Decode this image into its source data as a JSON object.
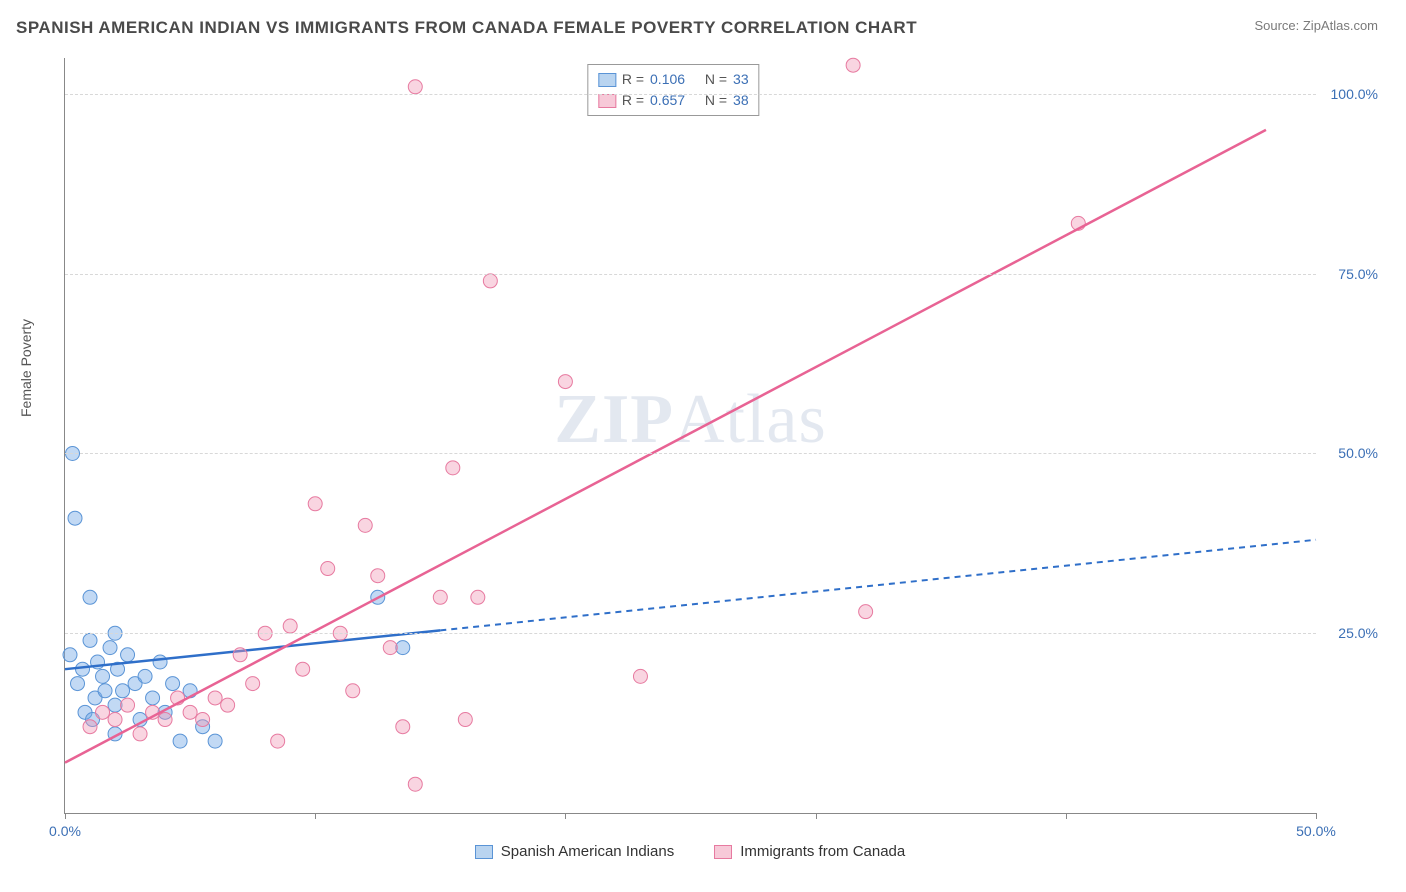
{
  "header": {
    "title": "SPANISH AMERICAN INDIAN VS IMMIGRANTS FROM CANADA FEMALE POVERTY CORRELATION CHART",
    "source": "Source: ZipAtlas.com"
  },
  "chart": {
    "type": "scatter",
    "ylabel": "Female Poverty",
    "watermark": "ZIPAtlas",
    "background_color": "#ffffff",
    "grid_color": "#d8d8d8",
    "axis_color": "#888888",
    "tick_label_color": "#3b6fb5",
    "xlim": [
      0,
      50
    ],
    "ylim": [
      0,
      105
    ],
    "xticks": [
      0,
      10,
      20,
      30,
      40,
      50
    ],
    "xtick_labels": [
      "0.0%",
      "",
      "",
      "",
      "",
      "50.0%"
    ],
    "yticks": [
      25,
      50,
      75,
      100
    ],
    "ytick_labels": [
      "25.0%",
      "50.0%",
      "75.0%",
      "100.0%"
    ],
    "series": [
      {
        "name": "Spanish American Indians",
        "color_fill": "rgba(120,170,230,0.45)",
        "color_stroke": "#5a94d6",
        "swatch_fill": "#b9d4f0",
        "swatch_border": "#5a94d6",
        "marker_r": 7,
        "R": "0.106",
        "N": "33",
        "trend": {
          "x1": 0,
          "y1": 20,
          "x2": 50,
          "y2": 38,
          "solid_until_x": 15,
          "stroke": "#2f6fc9",
          "width": 2.5,
          "dash": "6,5"
        },
        "points": [
          [
            0.2,
            22
          ],
          [
            0.5,
            18
          ],
          [
            0.7,
            20
          ],
          [
            0.8,
            14
          ],
          [
            1.0,
            24
          ],
          [
            1.2,
            16
          ],
          [
            1.3,
            21
          ],
          [
            1.5,
            19
          ],
          [
            1.6,
            17
          ],
          [
            1.8,
            23
          ],
          [
            2.0,
            15
          ],
          [
            2.1,
            20
          ],
          [
            2.3,
            17
          ],
          [
            2.5,
            22
          ],
          [
            2.8,
            18
          ],
          [
            3.0,
            13
          ],
          [
            3.2,
            19
          ],
          [
            3.5,
            16
          ],
          [
            3.8,
            21
          ],
          [
            4.0,
            14
          ],
          [
            4.3,
            18
          ],
          [
            4.6,
            10
          ],
          [
            5.0,
            17
          ],
          [
            5.5,
            12
          ],
          [
            6.0,
            10
          ],
          [
            0.4,
            41
          ],
          [
            0.3,
            50
          ],
          [
            1.0,
            30
          ],
          [
            2.0,
            25
          ],
          [
            2.0,
            11
          ],
          [
            12.5,
            30
          ],
          [
            13.5,
            23
          ],
          [
            1.1,
            13
          ]
        ]
      },
      {
        "name": "Immigrants from Canada",
        "color_fill": "rgba(240,150,180,0.40)",
        "color_stroke": "#e77aa0",
        "swatch_fill": "#f7c9d8",
        "swatch_border": "#e77aa0",
        "marker_r": 7,
        "R": "0.657",
        "N": "38",
        "trend": {
          "x1": 0,
          "y1": 7,
          "x2": 48,
          "y2": 95,
          "solid_until_x": 48,
          "stroke": "#e86394",
          "width": 2.5,
          "dash": ""
        },
        "points": [
          [
            1.0,
            12
          ],
          [
            1.5,
            14
          ],
          [
            2.0,
            13
          ],
          [
            2.5,
            15
          ],
          [
            3.0,
            11
          ],
          [
            3.5,
            14
          ],
          [
            4.0,
            13
          ],
          [
            4.5,
            16
          ],
          [
            5.0,
            14
          ],
          [
            5.5,
            13
          ],
          [
            6.0,
            16
          ],
          [
            6.5,
            15
          ],
          [
            7.0,
            22
          ],
          [
            7.5,
            18
          ],
          [
            8.0,
            25
          ],
          [
            8.5,
            10
          ],
          [
            9.0,
            26
          ],
          [
            9.5,
            20
          ],
          [
            10.0,
            43
          ],
          [
            10.5,
            34
          ],
          [
            11.0,
            25
          ],
          [
            11.5,
            17
          ],
          [
            12.0,
            40
          ],
          [
            12.5,
            33
          ],
          [
            13.0,
            23
          ],
          [
            13.5,
            12
          ],
          [
            14.0,
            4
          ],
          [
            15.0,
            30
          ],
          [
            15.5,
            48
          ],
          [
            16.5,
            30
          ],
          [
            17.0,
            74
          ],
          [
            20.0,
            60
          ],
          [
            23.0,
            19
          ],
          [
            14.0,
            101
          ],
          [
            31.5,
            104
          ],
          [
            32.0,
            28
          ],
          [
            40.5,
            82
          ],
          [
            16.0,
            13
          ]
        ]
      }
    ],
    "legend_top": {
      "border_color": "#999999",
      "R_label": "R =",
      "N_label": "N ="
    },
    "legend_bottom": [
      {
        "swatch_fill": "#b9d4f0",
        "swatch_border": "#5a94d6",
        "label": "Spanish American Indians"
      },
      {
        "swatch_fill": "#f7c9d8",
        "swatch_border": "#e77aa0",
        "label": "Immigrants from Canada"
      }
    ]
  }
}
